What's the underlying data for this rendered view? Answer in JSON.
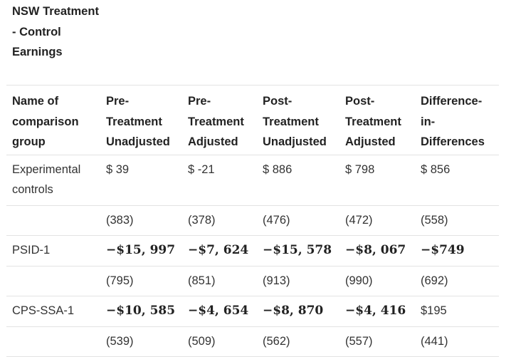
{
  "title": "NSW Treatment - Control Earnings",
  "headers": [
    "Name of comparison group",
    "Pre-Treatment Unadjusted",
    "Pre-Treatment Adjusted",
    "Post-Treatment Unadjusted",
    "Post-Treatment Adjusted",
    "Difference-in-Differences"
  ],
  "rows": [
    {
      "group": "Experimental controls",
      "values": [
        "$ 39",
        "$ -21",
        "$ 886",
        "$ 798",
        "$ 856"
      ],
      "value_styles": [
        "plain",
        "plain",
        "plain",
        "plain",
        "plain"
      ],
      "std_errors": [
        "(383)",
        "(378)",
        "(476)",
        "(472)",
        "(558)"
      ]
    },
    {
      "group": "PSID-1",
      "values": [
        "−$15, 997",
        "−$7, 624",
        "−$15, 578",
        "−$8, 067",
        "−$749"
      ],
      "value_styles": [
        "math",
        "math",
        "math",
        "math",
        "math"
      ],
      "std_errors": [
        "(795)",
        "(851)",
        "(913)",
        "(990)",
        "(692)"
      ]
    },
    {
      "group": "CPS-SSA-1",
      "values": [
        "−$10, 585",
        "−$4, 654",
        "−$8, 870",
        "−$4, 416",
        "$195"
      ],
      "value_styles": [
        "math",
        "math",
        "math",
        "math",
        "plain"
      ],
      "std_errors": [
        "(539)",
        "(509)",
        "(562)",
        "(557)",
        "(441)"
      ]
    }
  ]
}
